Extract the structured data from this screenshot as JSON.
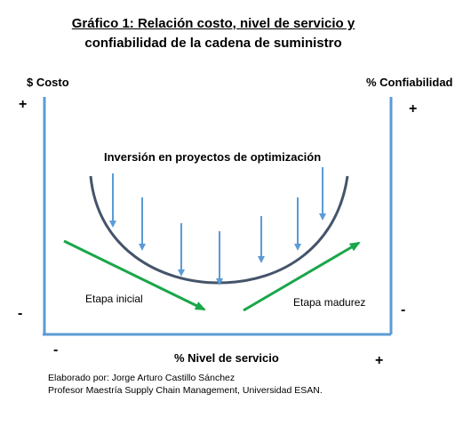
{
  "chart_data": {
    "type": "diagram",
    "title_line1": "Gráfico 1: Relación costo, nivel de servicio y",
    "title_line2": "confiabilidad  de la cadena de suministro",
    "y_left_label": "$ Costo",
    "y_right_label": "% Confiabilidad",
    "x_label": "% Nivel de servicio",
    "left_top_sign": "+",
    "left_bottom_sign": "-",
    "right_top_sign": "+",
    "right_bottom_sign": "-",
    "x_left_sign": "-",
    "x_right_sign": "+",
    "curve_label": "Inversión en proyectos de optimización",
    "stage_initial": "Etapa inicial",
    "stage_mature": "Etapa madurez",
    "colors": {
      "axis": "#5b9bd5",
      "curve": "#44546a",
      "arrows": "#5b9bd5",
      "stage_arrows": "#1aa64a"
    }
  },
  "credit_line1": "Elaborado por: Jorge Arturo Castillo Sánchez",
  "credit_line2": "Profesor Maestría Supply Chain Management, Universidad ESAN."
}
